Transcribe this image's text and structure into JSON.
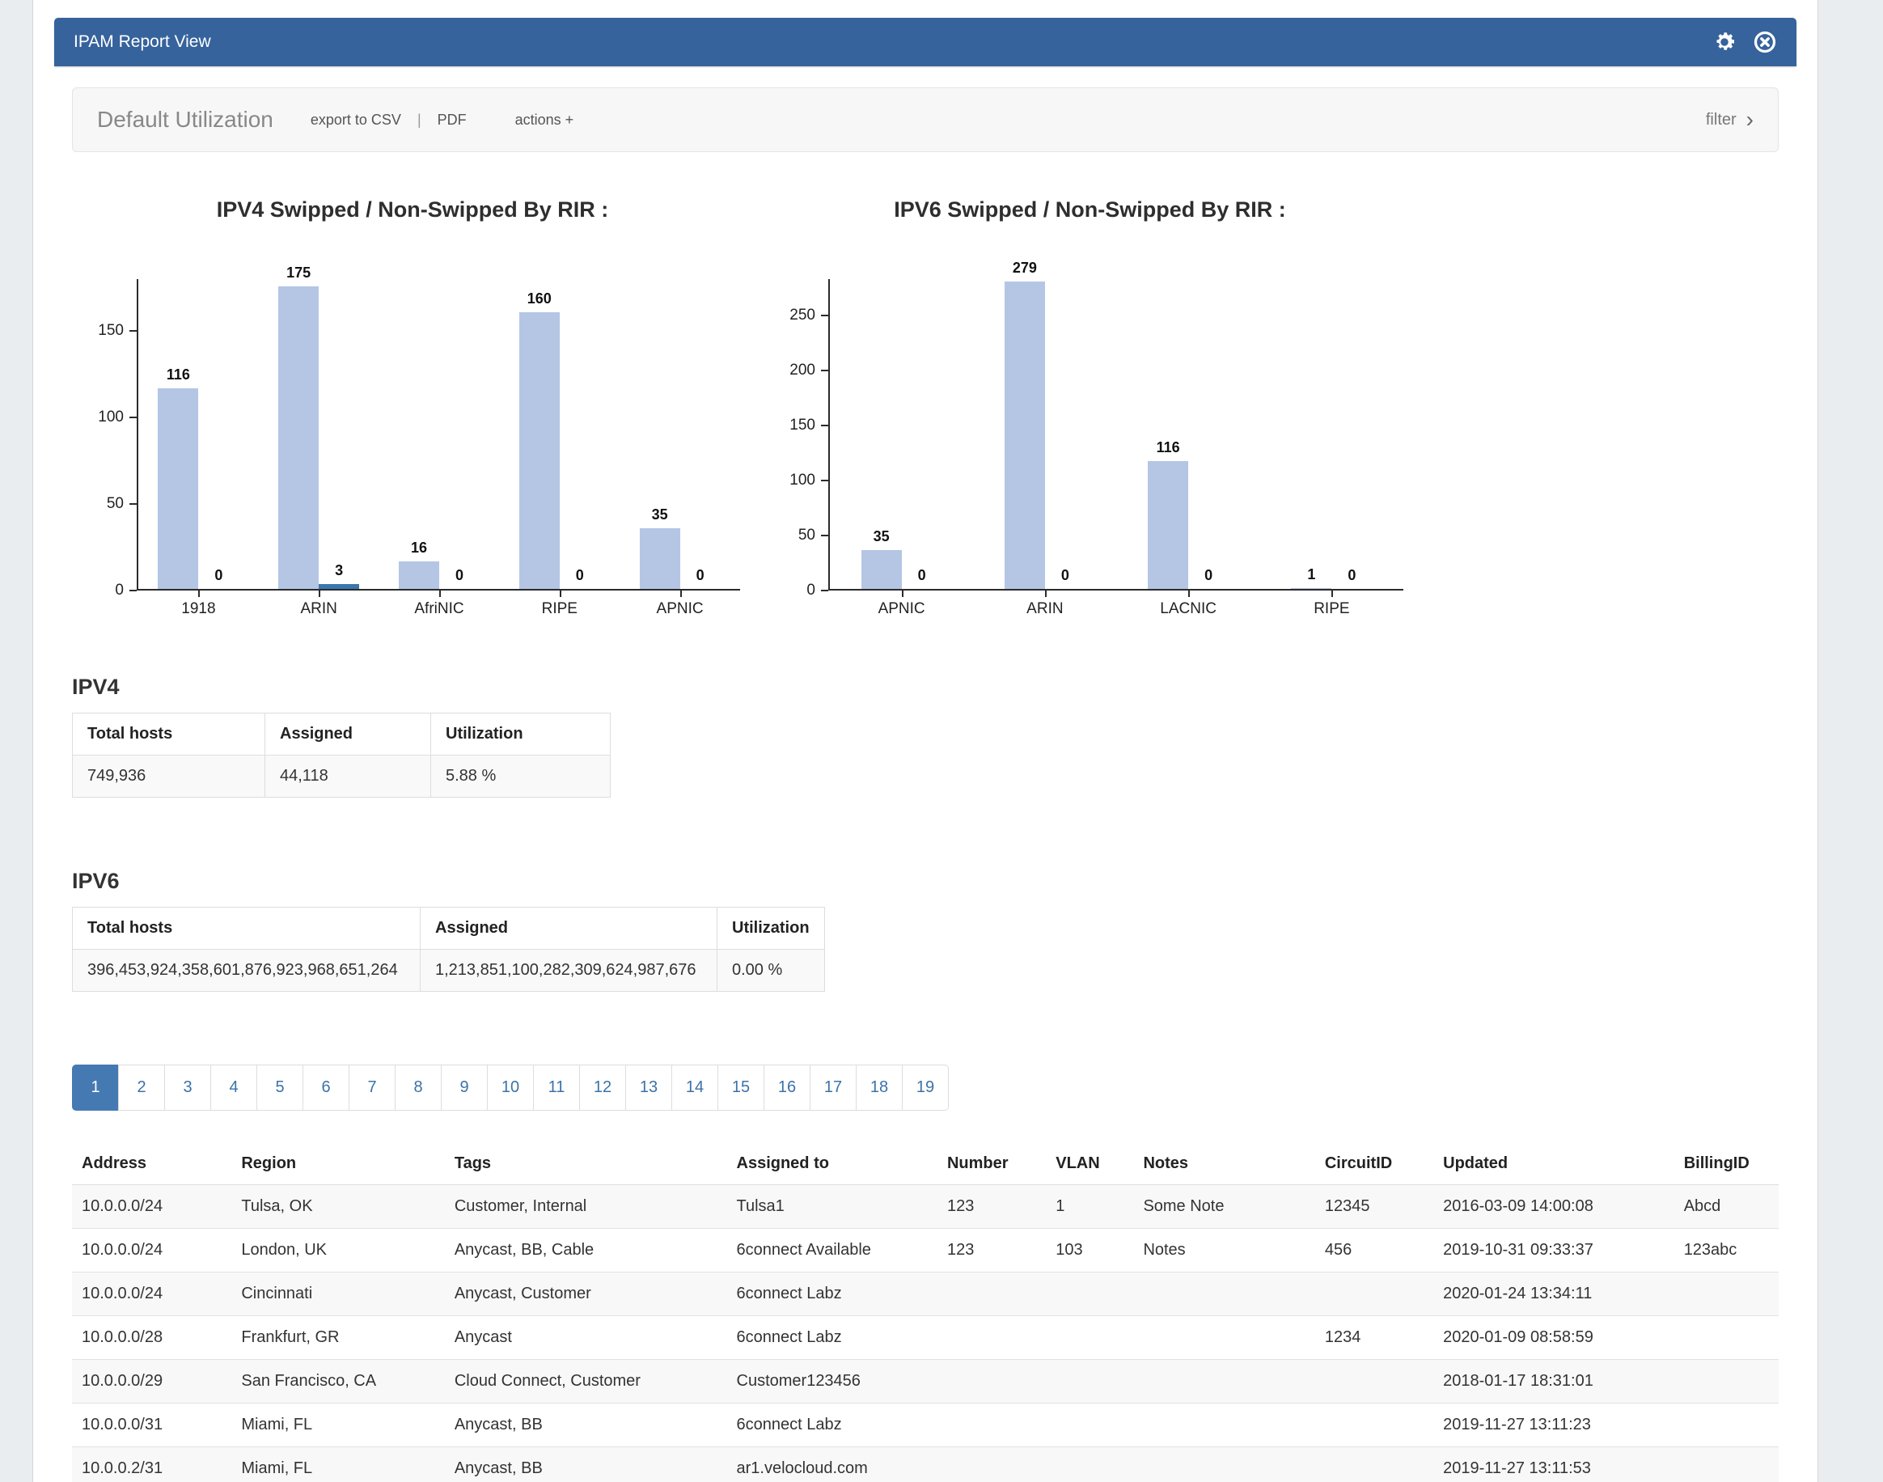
{
  "panel": {
    "title": "IPAM Report View"
  },
  "toolbar": {
    "title": "Default Utilization",
    "export_csv": "export to CSV",
    "separator": "|",
    "pdf": "PDF",
    "actions": "actions +",
    "filter": "filter",
    "filter_chevron": "›"
  },
  "chart_data": [
    {
      "type": "bar",
      "title": "IPV4 Swipped / Non-Swipped By RIR :",
      "categories": [
        "1918",
        "ARIN",
        "AfriNIC",
        "RIPE",
        "APNIC"
      ],
      "series": [
        {
          "name": "Swipped",
          "color": "#b4c6e4",
          "values": [
            116,
            175,
            16,
            160,
            35
          ]
        },
        {
          "name": "Non-Swipped",
          "color": "#3a75ae",
          "values": [
            0,
            3,
            0,
            0,
            0
          ]
        }
      ],
      "ylim": [
        0,
        180
      ],
      "yticks": [
        0,
        50,
        100,
        150
      ],
      "grid": false,
      "legend": "none",
      "value_labels": true
    },
    {
      "type": "bar",
      "title": "IPV6 Swipped / Non-Swipped By RIR :",
      "categories": [
        "APNIC",
        "ARIN",
        "LACNIC",
        "RIPE"
      ],
      "series": [
        {
          "name": "Swipped",
          "color": "#b4c6e4",
          "values": [
            35,
            279,
            116,
            1
          ]
        },
        {
          "name": "Non-Swipped",
          "color": "#3a75ae",
          "values": [
            0,
            0,
            0,
            0
          ]
        }
      ],
      "ylim": [
        0,
        283
      ],
      "yticks": [
        0,
        50,
        100,
        150,
        200,
        250
      ],
      "grid": false,
      "legend": "none",
      "value_labels": true
    }
  ],
  "ipv4_summary": {
    "heading": "IPV4",
    "columns": [
      "Total hosts",
      "Assigned",
      "Utilization"
    ],
    "rows": [
      [
        "749,936",
        "44,118",
        "5.88 %"
      ]
    ]
  },
  "ipv6_summary": {
    "heading": "IPV6",
    "columns": [
      "Total hosts",
      "Assigned",
      "Utilization"
    ],
    "rows": [
      [
        "396,453,924,358,601,876,923,968,651,264",
        "1,213,851,100,282,309,624,987,676",
        "0.00 %"
      ]
    ]
  },
  "pagination": {
    "active": "1",
    "pages": [
      "1",
      "2",
      "3",
      "4",
      "5",
      "6",
      "7",
      "8",
      "9",
      "10",
      "11",
      "12",
      "13",
      "14",
      "15",
      "16",
      "17",
      "18",
      "19"
    ]
  },
  "records_table": {
    "columns": [
      "Address",
      "Region",
      "Tags",
      "Assigned to",
      "Number",
      "VLAN",
      "Notes",
      "CircuitID",
      "Updated",
      "BillingID"
    ],
    "rows": [
      [
        "10.0.0.0/24",
        "Tulsa, OK",
        "Customer, Internal",
        "Tulsa1",
        "123",
        "1",
        "Some Note",
        "12345",
        "2016-03-09 14:00:08",
        "Abcd"
      ],
      [
        "10.0.0.0/24",
        "London, UK",
        "Anycast, BB, Cable",
        "6connect Available",
        "123",
        "103",
        "Notes",
        "456",
        "2019-10-31 09:33:37",
        "123abc"
      ],
      [
        "10.0.0.0/24",
        "Cincinnati",
        "Anycast, Customer",
        "6connect Labz",
        "",
        "",
        "",
        "",
        "2020-01-24 13:34:11",
        ""
      ],
      [
        "10.0.0.0/28",
        "Frankfurt, GR",
        "Anycast",
        "6connect Labz",
        "",
        "",
        "",
        "1234",
        "2020-01-09 08:58:59",
        ""
      ],
      [
        "10.0.0.0/29",
        "San Francisco, CA",
        "Cloud Connect, Customer",
        "Customer123456",
        "",
        "",
        "",
        "",
        "2018-01-17 18:31:01",
        ""
      ],
      [
        "10.0.0.0/31",
        "Miami, FL",
        "Anycast, BB",
        "6connect Labz",
        "",
        "",
        "",
        "",
        "2019-11-27 13:11:23",
        ""
      ],
      [
        "10.0.0.2/31",
        "Miami, FL",
        "Anycast, BB",
        "ar1.velocloud.com",
        "",
        "",
        "",
        "",
        "2019-11-27 13:11:53",
        ""
      ]
    ]
  },
  "colors": {
    "header_blue": "#36639c",
    "bar_light": "#b4c6e4",
    "bar_dark": "#3a75ae",
    "pagination_active": "#4579b2",
    "link_blue": "#3b72a8"
  }
}
